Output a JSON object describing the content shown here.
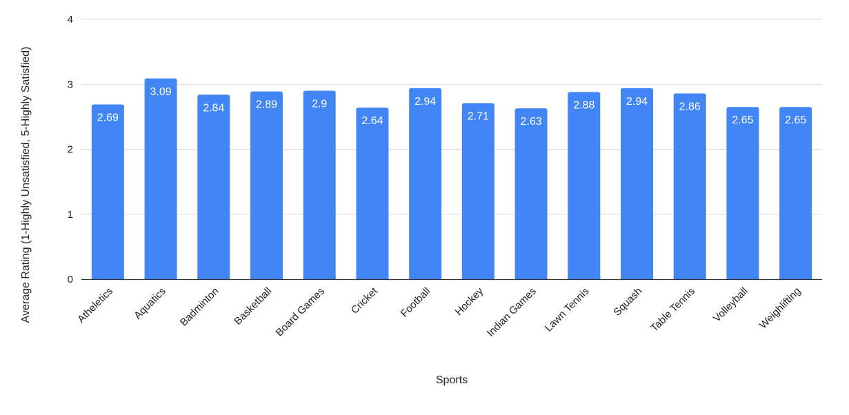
{
  "chart_data": {
    "type": "bar",
    "title": "",
    "xlabel": "Sports",
    "ylabel": "Average Rating (1-Highly Unsatisfied, 5-Highly Satisfied)",
    "ylim": [
      0,
      4
    ],
    "yticks": [
      "0",
      "1",
      "2",
      "3",
      "4"
    ],
    "grid": true,
    "legend": "none",
    "bar_color": "#4285f4",
    "categories": [
      "Atheletics",
      "Aquatics",
      "Badminton",
      "Basketball",
      "Board Games",
      "Cricket",
      "Football",
      "Hockey",
      "Indian Games",
      "Lawn Tennis",
      "Squash",
      "Table Tennis",
      "Volleyball",
      "Weighlifting"
    ],
    "values": [
      2.69,
      3.09,
      2.84,
      2.89,
      2.9,
      2.64,
      2.94,
      2.71,
      2.63,
      2.88,
      2.94,
      2.86,
      2.65,
      2.65
    ],
    "data_labels": [
      "2.69",
      "3.09",
      "2.84",
      "2.89",
      "2.9",
      "2.64",
      "2.94",
      "2.71",
      "2.63",
      "2.88",
      "2.94",
      "2.86",
      "2.65",
      "2.65"
    ]
  }
}
